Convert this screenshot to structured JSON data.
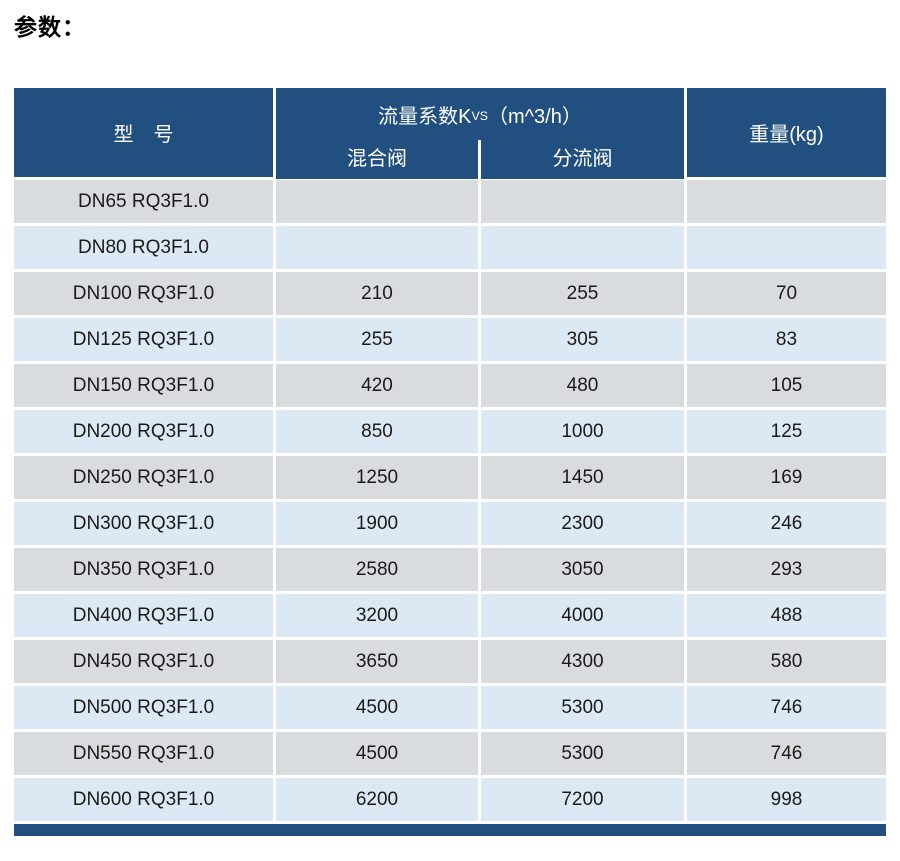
{
  "page": {
    "title": "参数："
  },
  "colors": {
    "header_navy": "#215080",
    "row_gray": "#d9dcdf",
    "row_blue": "#dce9f5",
    "header_text": "#ffffff",
    "body_text": "#1a1a1a"
  },
  "table": {
    "header": {
      "model_label": "型　号",
      "kvs_prefix": "流量系数K",
      "kvs_sub": "VS",
      "kvs_suffix": "（m^3/h）",
      "mixing_label": "混合阀",
      "diverting_label": "分流阀",
      "weight_label": "重量(kg)"
    },
    "rows": [
      {
        "model": "DN65 RQ3F1.0",
        "mixing": "",
        "diverting": "",
        "weight": ""
      },
      {
        "model": "DN80 RQ3F1.0",
        "mixing": "",
        "diverting": "",
        "weight": ""
      },
      {
        "model": "DN100 RQ3F1.0",
        "mixing": "210",
        "diverting": "255",
        "weight": "70"
      },
      {
        "model": "DN125 RQ3F1.0",
        "mixing": "255",
        "diverting": "305",
        "weight": "83"
      },
      {
        "model": "DN150 RQ3F1.0",
        "mixing": "420",
        "diverting": "480",
        "weight": "105"
      },
      {
        "model": "DN200 RQ3F1.0",
        "mixing": "850",
        "diverting": "1000",
        "weight": "125"
      },
      {
        "model": "DN250 RQ3F1.0",
        "mixing": "1250",
        "diverting": "1450",
        "weight": "169"
      },
      {
        "model": "DN300 RQ3F1.0",
        "mixing": "1900",
        "diverting": "2300",
        "weight": "246"
      },
      {
        "model": "DN350 RQ3F1.0",
        "mixing": "2580",
        "diverting": "3050",
        "weight": "293"
      },
      {
        "model": "DN400 RQ3F1.0",
        "mixing": "3200",
        "diverting": "4000",
        "weight": "488"
      },
      {
        "model": "DN450 RQ3F1.0",
        "mixing": "3650",
        "diverting": "4300",
        "weight": "580"
      },
      {
        "model": "DN500 RQ3F1.0",
        "mixing": "4500",
        "diverting": "5300",
        "weight": "746"
      },
      {
        "model": "DN550 RQ3F1.0",
        "mixing": "4500",
        "diverting": "5300",
        "weight": "746"
      },
      {
        "model": "DN600 RQ3F1.0",
        "mixing": "6200",
        "diverting": "7200",
        "weight": "998"
      }
    ]
  }
}
